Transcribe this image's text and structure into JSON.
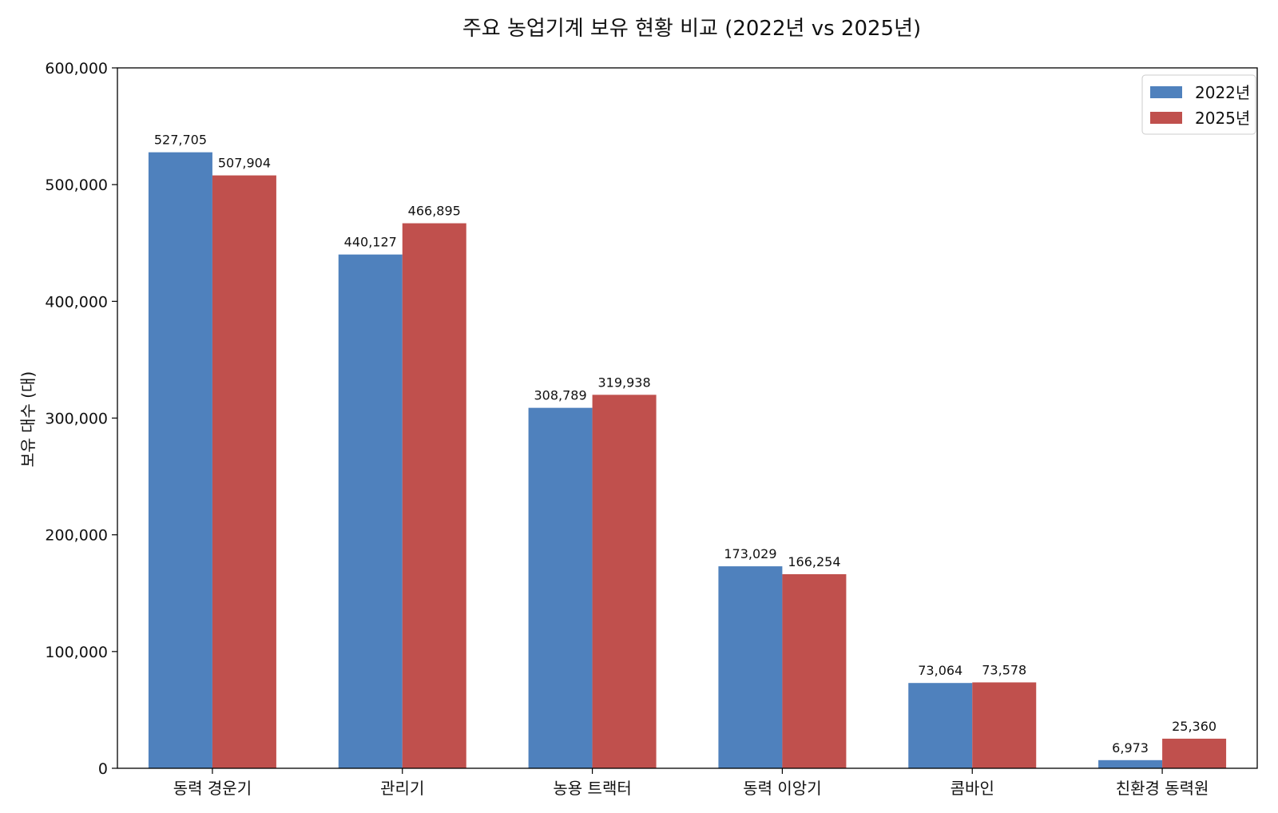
{
  "chart_data": {
    "type": "bar",
    "title": "주요 농업기계 보유 현황 비교 (2022년 vs 2025년)",
    "xlabel": "",
    "ylabel": "보유 대수 (대)",
    "categories": [
      "동력 경운기",
      "관리기",
      "농용 트랙터",
      "동력 이앙기",
      "콤바인",
      "친환경 동력원"
    ],
    "series": [
      {
        "name": "2022년",
        "color": "#4f81bd",
        "values": [
          527705,
          440127,
          308789,
          173029,
          73064,
          6973
        ]
      },
      {
        "name": "2025년",
        "color": "#c0504d",
        "values": [
          507904,
          466895,
          319938,
          166254,
          73578,
          25360
        ]
      }
    ],
    "ylim": [
      0,
      600000
    ],
    "yticks": [
      0,
      100000,
      200000,
      300000,
      400000,
      500000,
      600000
    ],
    "ytick_labels": [
      "0",
      "100,000",
      "200,000",
      "300,000",
      "400,000",
      "500,000",
      "600,000"
    ],
    "data_labels": [
      [
        "527,705",
        "440,127",
        "308,789",
        "173,029",
        "73,064",
        "6,973"
      ],
      [
        "507,904",
        "466,895",
        "319,938",
        "166,254",
        "73,578",
        "25,360"
      ]
    ],
    "grid": false,
    "legend_position": "top-right"
  }
}
